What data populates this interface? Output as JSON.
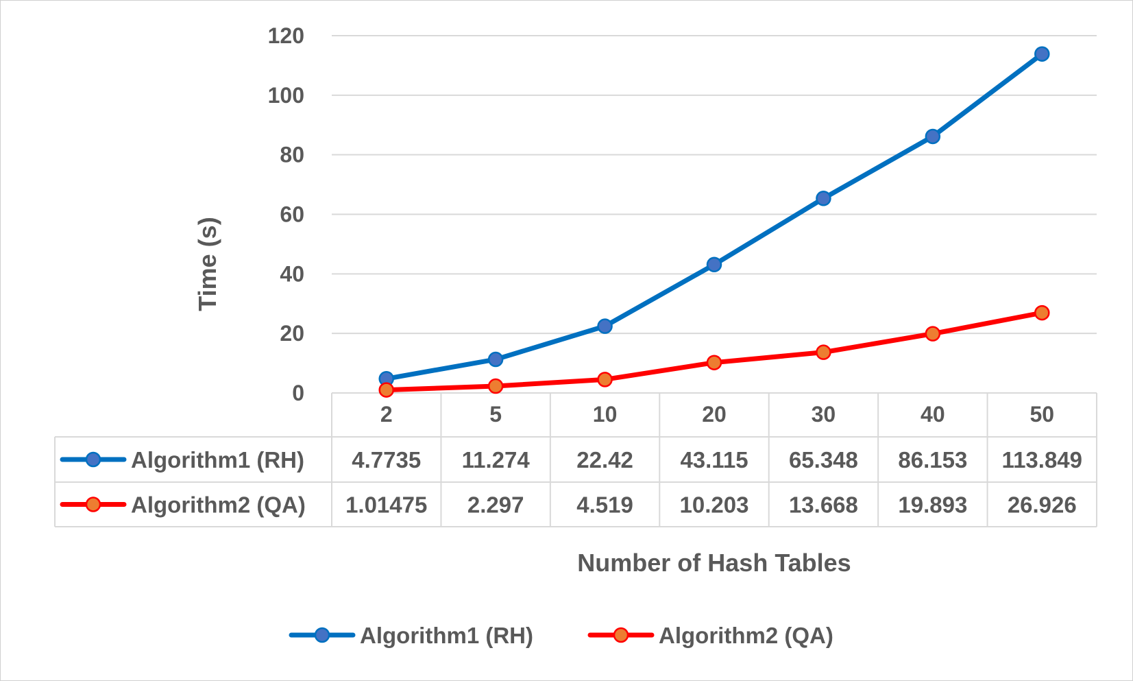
{
  "chart_data": {
    "type": "line",
    "title": "",
    "xlabel": "Number of Hash Tables",
    "ylabel": "Time (s)",
    "categories": [
      "2",
      "5",
      "10",
      "20",
      "30",
      "40",
      "50"
    ],
    "ylim": [
      0,
      120
    ],
    "yticks": [
      0,
      20,
      40,
      60,
      80,
      100,
      120
    ],
    "grid": true,
    "legend_position": "bottom",
    "data_table": true,
    "series": [
      {
        "name": "Algorithm1 (RH)",
        "values": [
          4.7735,
          11.274,
          22.42,
          43.115,
          65.348,
          86.153,
          113.849
        ],
        "labels": [
          "4.7735",
          "11.274",
          "22.42",
          "43.115",
          "65.348",
          "86.153",
          "113.849"
        ],
        "line_color": "#0070c0",
        "marker_fill": "#4472c4",
        "marker_edge": "#0070c0"
      },
      {
        "name": "Algorithm2 (QA)",
        "values": [
          1.01475,
          2.297,
          4.519,
          10.203,
          13.668,
          19.893,
          26.926
        ],
        "labels": [
          "1.01475",
          "2.297",
          "4.519",
          "10.203",
          "13.668",
          "19.893",
          "26.926"
        ],
        "line_color": "#ff0000",
        "marker_fill": "#ed7d31",
        "marker_edge": "#ff0000"
      }
    ]
  }
}
